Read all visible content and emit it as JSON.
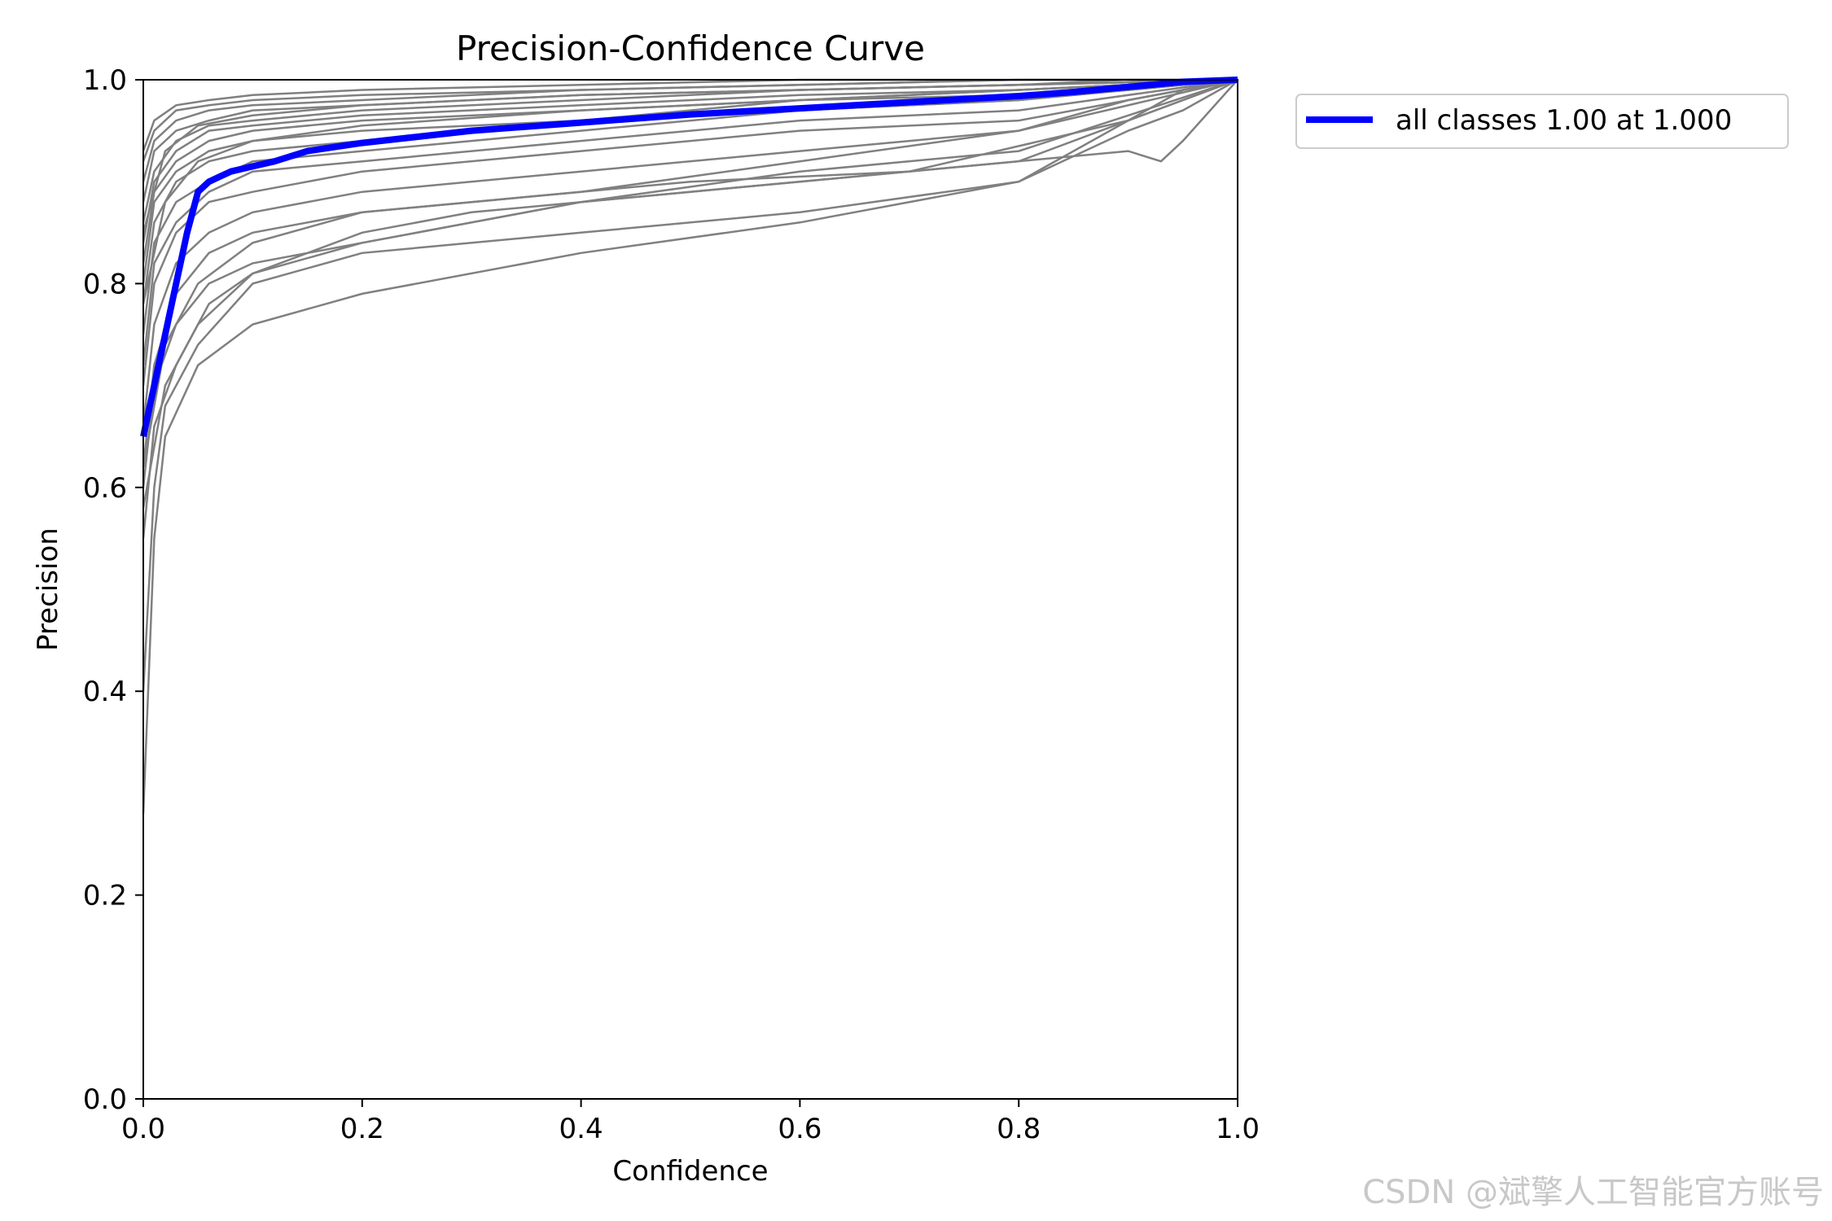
{
  "chart_data": {
    "type": "line",
    "title": "Precision-Confidence Curve",
    "xlabel": "Confidence",
    "ylabel": "Precision",
    "xlim": [
      0.0,
      1.0
    ],
    "ylim": [
      0.0,
      1.0
    ],
    "xticks": [
      "0.0",
      "0.2",
      "0.4",
      "0.6",
      "0.8",
      "1.0"
    ],
    "yticks": [
      "0.0",
      "0.2",
      "0.4",
      "0.6",
      "0.8",
      "1.0"
    ],
    "grid": false,
    "legend_position": "outside-top-right",
    "class_curve_color": "#808080",
    "mean_curve_color": "#0000ff",
    "series": [
      {
        "name": "all classes 1.00 at 1.000",
        "color": "#0000ff",
        "x": [
          0.0,
          0.01,
          0.02,
          0.03,
          0.04,
          0.05,
          0.06,
          0.07,
          0.08,
          0.1,
          0.12,
          0.15,
          0.2,
          0.25,
          0.3,
          0.35,
          0.4,
          0.45,
          0.5,
          0.55,
          0.6,
          0.65,
          0.7,
          0.75,
          0.8,
          0.85,
          0.9,
          0.95,
          1.0
        ],
        "y": [
          0.65,
          0.7,
          0.75,
          0.8,
          0.85,
          0.89,
          0.9,
          0.905,
          0.91,
          0.915,
          0.92,
          0.93,
          0.938,
          0.944,
          0.95,
          0.954,
          0.958,
          0.962,
          0.966,
          0.969,
          0.972,
          0.975,
          0.978,
          0.981,
          0.984,
          0.988,
          0.993,
          0.998,
          1.0
        ]
      }
    ],
    "class_curves": [
      {
        "x": [
          0.0,
          0.01,
          0.02,
          0.05,
          0.1,
          0.2,
          0.4,
          0.6,
          0.8,
          0.9,
          0.95,
          1.0
        ],
        "y": [
          0.28,
          0.55,
          0.65,
          0.72,
          0.76,
          0.79,
          0.83,
          0.86,
          0.9,
          0.95,
          0.97,
          1.0
        ]
      },
      {
        "x": [
          0.0,
          0.01,
          0.02,
          0.05,
          0.1,
          0.2,
          0.4,
          0.6,
          0.8,
          0.9,
          0.95,
          1.0
        ],
        "y": [
          0.4,
          0.6,
          0.68,
          0.74,
          0.8,
          0.83,
          0.85,
          0.87,
          0.9,
          0.96,
          0.98,
          1.0
        ]
      },
      {
        "x": [
          0.0,
          0.01,
          0.03,
          0.06,
          0.1,
          0.2,
          0.4,
          0.6,
          0.8,
          0.9,
          1.0
        ],
        "y": [
          0.55,
          0.66,
          0.72,
          0.78,
          0.81,
          0.84,
          0.88,
          0.9,
          0.92,
          0.96,
          1.0
        ]
      },
      {
        "x": [
          0.0,
          0.01,
          0.03,
          0.06,
          0.1,
          0.2,
          0.3,
          0.4,
          0.6,
          0.8,
          1.0
        ],
        "y": [
          0.6,
          0.7,
          0.76,
          0.8,
          0.82,
          0.84,
          0.86,
          0.88,
          0.91,
          0.93,
          1.0
        ]
      },
      {
        "x": [
          0.0,
          0.01,
          0.03,
          0.06,
          0.1,
          0.2,
          0.4,
          0.6,
          0.8,
          0.9,
          1.0
        ],
        "y": [
          0.62,
          0.72,
          0.79,
          0.83,
          0.85,
          0.87,
          0.89,
          0.92,
          0.95,
          0.98,
          1.0
        ]
      },
      {
        "x": [
          0.0,
          0.01,
          0.03,
          0.06,
          0.1,
          0.2,
          0.4,
          0.6,
          0.8,
          1.0
        ],
        "y": [
          0.66,
          0.76,
          0.82,
          0.85,
          0.87,
          0.89,
          0.91,
          0.93,
          0.95,
          1.0
        ]
      },
      {
        "x": [
          0.0,
          0.01,
          0.03,
          0.06,
          0.1,
          0.2,
          0.4,
          0.6,
          0.8,
          1.0
        ],
        "y": [
          0.7,
          0.8,
          0.85,
          0.88,
          0.89,
          0.91,
          0.93,
          0.95,
          0.96,
          1.0
        ]
      },
      {
        "x": [
          0.0,
          0.01,
          0.03,
          0.06,
          0.1,
          0.2,
          0.4,
          0.6,
          0.8,
          1.0
        ],
        "y": [
          0.72,
          0.82,
          0.86,
          0.89,
          0.91,
          0.92,
          0.94,
          0.96,
          0.97,
          1.0
        ]
      },
      {
        "x": [
          0.0,
          0.01,
          0.03,
          0.06,
          0.1,
          0.2,
          0.4,
          0.6,
          0.8,
          1.0
        ],
        "y": [
          0.75,
          0.84,
          0.88,
          0.9,
          0.92,
          0.93,
          0.95,
          0.97,
          0.98,
          1.0
        ]
      },
      {
        "x": [
          0.0,
          0.01,
          0.03,
          0.06,
          0.1,
          0.2,
          0.4,
          0.6,
          0.8,
          1.0
        ],
        "y": [
          0.78,
          0.86,
          0.9,
          0.92,
          0.93,
          0.94,
          0.96,
          0.97,
          0.98,
          1.0
        ]
      },
      {
        "x": [
          0.0,
          0.01,
          0.03,
          0.06,
          0.1,
          0.2,
          0.4,
          0.6,
          0.8,
          1.0
        ],
        "y": [
          0.8,
          0.88,
          0.91,
          0.93,
          0.94,
          0.95,
          0.96,
          0.98,
          0.99,
          1.0
        ]
      },
      {
        "x": [
          0.0,
          0.01,
          0.03,
          0.06,
          0.1,
          0.2,
          0.4,
          0.6,
          0.8,
          1.0
        ],
        "y": [
          0.82,
          0.89,
          0.92,
          0.94,
          0.95,
          0.96,
          0.97,
          0.98,
          0.99,
          1.0
        ]
      },
      {
        "x": [
          0.0,
          0.01,
          0.03,
          0.06,
          0.1,
          0.2,
          0.4,
          0.6,
          0.8,
          1.0
        ],
        "y": [
          0.84,
          0.9,
          0.93,
          0.95,
          0.955,
          0.965,
          0.975,
          0.985,
          0.99,
          1.0
        ]
      },
      {
        "x": [
          0.0,
          0.01,
          0.03,
          0.06,
          0.1,
          0.2,
          0.4,
          0.6,
          0.8,
          1.0
        ],
        "y": [
          0.86,
          0.91,
          0.94,
          0.955,
          0.96,
          0.97,
          0.98,
          0.99,
          0.995,
          1.0
        ]
      },
      {
        "x": [
          0.0,
          0.01,
          0.03,
          0.06,
          0.1,
          0.2,
          0.4,
          0.6,
          0.8,
          1.0
        ],
        "y": [
          0.88,
          0.93,
          0.95,
          0.96,
          0.97,
          0.975,
          0.985,
          0.99,
          0.995,
          1.0
        ]
      },
      {
        "x": [
          0.0,
          0.01,
          0.03,
          0.06,
          0.1,
          0.2,
          0.4,
          0.6,
          0.8,
          1.0
        ],
        "y": [
          0.9,
          0.94,
          0.96,
          0.97,
          0.975,
          0.98,
          0.99,
          0.995,
          1.0,
          1.0
        ]
      },
      {
        "x": [
          0.0,
          0.01,
          0.03,
          0.06,
          0.1,
          0.2,
          0.4,
          0.6,
          0.8,
          1.0
        ],
        "y": [
          0.92,
          0.95,
          0.97,
          0.975,
          0.98,
          0.985,
          0.99,
          0.995,
          1.0,
          1.0
        ]
      },
      {
        "x": [
          0.0,
          0.01,
          0.03,
          0.06,
          0.1,
          0.2,
          0.4,
          0.6,
          0.8,
          1.0
        ],
        "y": [
          0.93,
          0.96,
          0.975,
          0.98,
          0.985,
          0.99,
          0.995,
          1.0,
          1.0,
          1.0
        ]
      },
      {
        "x": [
          0.0,
          0.02,
          0.05,
          0.1,
          0.2,
          0.3,
          0.5,
          0.7,
          0.9,
          0.93,
          0.95,
          1.0
        ],
        "y": [
          0.62,
          0.74,
          0.8,
          0.84,
          0.87,
          0.88,
          0.9,
          0.91,
          0.93,
          0.92,
          0.94,
          1.0
        ]
      },
      {
        "x": [
          0.0,
          0.02,
          0.05,
          0.1,
          0.2,
          0.3,
          0.5,
          0.7,
          0.9,
          0.95,
          1.0
        ],
        "y": [
          0.58,
          0.7,
          0.76,
          0.81,
          0.85,
          0.87,
          0.89,
          0.91,
          0.96,
          0.99,
          1.0
        ]
      },
      {
        "x": [
          0.0,
          0.02,
          0.05,
          0.1,
          0.2,
          0.4,
          0.6,
          0.8,
          0.9,
          1.0
        ],
        "y": [
          0.85,
          0.93,
          0.955,
          0.965,
          0.975,
          0.985,
          0.99,
          0.995,
          1.0,
          1.0
        ]
      },
      {
        "x": [
          0.0,
          0.02,
          0.05,
          0.1,
          0.2,
          0.4,
          0.6,
          0.8,
          0.9,
          1.0
        ],
        "y": [
          0.78,
          0.88,
          0.92,
          0.94,
          0.955,
          0.97,
          0.98,
          0.985,
          0.99,
          1.0
        ]
      }
    ]
  },
  "watermark": "CSDN @斌擎人工智能官方账号"
}
